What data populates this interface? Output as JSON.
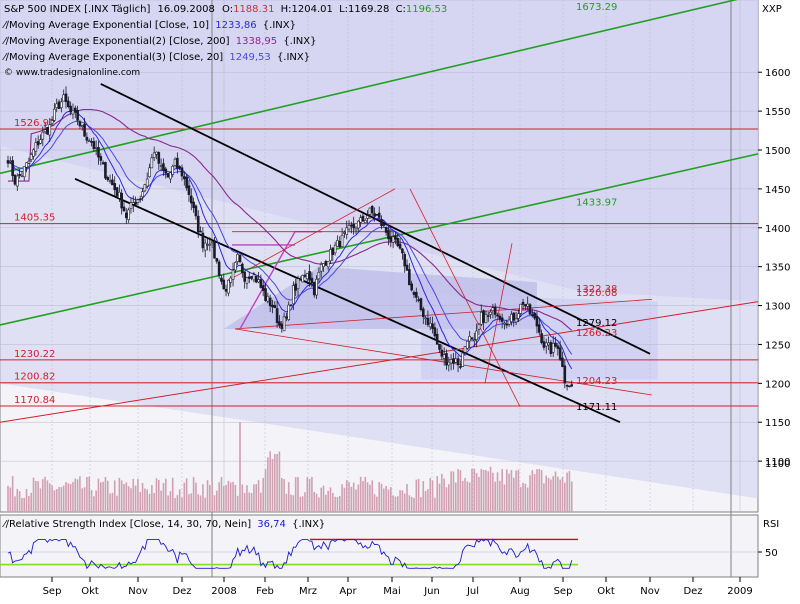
{
  "header": {
    "symbol_prefix": "S&P 500 INDEX [.INX  Täglich]",
    "date": "16.09.2008",
    "open_label": "O:",
    "open": "1188.31",
    "high_label": "H:",
    "high": "1204.01",
    "low_label": "L:",
    "low": "1169.28",
    "close_label": "C:",
    "close": "1196.53",
    "exchange_code": "XXP"
  },
  "indicators": [
    {
      "label": "Moving Average Exponential [Close, 10]",
      "value": "1233,86",
      "suffix": "{.INX}",
      "color": "#2a2ae0"
    },
    {
      "label": "Moving Average Exponential(2) [Close, 200]",
      "value": "1338,95",
      "suffix": "{.INX}",
      "color": "#8a2a8a"
    },
    {
      "label": "Moving Average Exponential(3) [Close, 20]",
      "value": "1249,53",
      "suffix": "{.INX}",
      "color": "#4a4ae0"
    }
  ],
  "watermark": "© www.tradesignalonline.com",
  "colors": {
    "panel_bg": "#f4f4f8",
    "band": "#d0d0f2",
    "grid": "#b8b8cc",
    "up": "#ffffff",
    "down": "#1a1a2a",
    "support": "#d0202a",
    "trend_green": "#20a020",
    "channel": "#000000",
    "fib": "#c080c0",
    "rsi_line": "#1a1ad0",
    "rsi_upper": "#e00000",
    "rsi_lower": "#80e020",
    "volume": "#d0a0b0"
  },
  "chart_data": [
    {
      "type": "candlestick",
      "title": "S&P 500 INDEX [.INX  Täglich]",
      "ylim": [
        1050,
        1680
      ],
      "y_ticks": [
        1100,
        1150,
        1200,
        1250,
        1300,
        1350,
        1400,
        1450,
        1500,
        1550,
        1600
      ],
      "x_ticks": [
        "Sep",
        "Okt",
        "Nov",
        "Dez",
        "2008",
        "Feb",
        "Mrz",
        "Apr",
        "Mai",
        "Jun",
        "Jul",
        "Aug",
        "Sep",
        "Okt",
        "Nov",
        "Dez",
        "2009"
      ],
      "close_path": [
        [
          0,
          1490
        ],
        [
          3,
          1460
        ],
        [
          6,
          1470
        ],
        [
          9,
          1485
        ],
        [
          12,
          1505
        ],
        [
          15,
          1520
        ],
        [
          18,
          1530
        ],
        [
          21,
          1555
        ],
        [
          24,
          1565
        ],
        [
          27,
          1548
        ],
        [
          30,
          1540
        ],
        [
          33,
          1520
        ],
        [
          36,
          1512
        ],
        [
          39,
          1490
        ],
        [
          42,
          1470
        ],
        [
          45,
          1455
        ],
        [
          48,
          1440
        ],
        [
          51,
          1415
        ],
        [
          54,
          1432
        ],
        [
          57,
          1440
        ],
        [
          60,
          1465
        ],
        [
          63,
          1500
        ],
        [
          66,
          1475
        ],
        [
          69,
          1465
        ],
        [
          72,
          1482
        ],
        [
          75,
          1470
        ],
        [
          78,
          1445
        ],
        [
          81,
          1410
        ],
        [
          84,
          1380
        ],
        [
          87,
          1385
        ],
        [
          90,
          1355
        ],
        [
          93,
          1320
        ],
        [
          96,
          1330
        ],
        [
          99,
          1360
        ],
        [
          102,
          1338
        ],
        [
          105,
          1342
        ],
        [
          108,
          1330
        ],
        [
          111,
          1310
        ],
        [
          114,
          1300
        ],
        [
          117,
          1275
        ],
        [
          120,
          1282
        ],
        [
          123,
          1320
        ],
        [
          126,
          1332
        ],
        [
          129,
          1345
        ],
        [
          132,
          1320
        ],
        [
          135,
          1350
        ],
        [
          138,
          1362
        ],
        [
          141,
          1375
        ],
        [
          144,
          1385
        ],
        [
          147,
          1397
        ],
        [
          150,
          1403
        ],
        [
          153,
          1410
        ],
        [
          156,
          1420
        ],
        [
          159,
          1415
        ],
        [
          162,
          1400
        ],
        [
          165,
          1385
        ],
        [
          168,
          1375
        ],
        [
          171,
          1355
        ],
        [
          174,
          1320
        ],
        [
          177,
          1300
        ],
        [
          180,
          1285
        ],
        [
          183,
          1270
        ],
        [
          186,
          1240
        ],
        [
          189,
          1230
        ],
        [
          192,
          1230
        ],
        [
          195,
          1225
        ],
        [
          198,
          1260
        ],
        [
          201,
          1250
        ],
        [
          204,
          1285
        ],
        [
          207,
          1285
        ],
        [
          210,
          1295
        ],
        [
          213,
          1285
        ],
        [
          216,
          1280
        ],
        [
          219,
          1288
        ],
        [
          222,
          1305
        ],
        [
          225,
          1290
        ],
        [
          228,
          1275
        ],
        [
          231,
          1250
        ],
        [
          234,
          1243
        ],
        [
          237,
          1250
        ],
        [
          240,
          1205
        ],
        [
          243,
          1196.53
        ]
      ],
      "levels": [
        {
          "label": "1526.92",
          "value": 1526.92
        },
        {
          "label": "1405.35",
          "value": 1405.35
        },
        {
          "label": "1230.22",
          "value": 1230.22
        },
        {
          "label": "1200.82",
          "value": 1200.82
        },
        {
          "label": "1170.84",
          "value": 1170.84
        }
      ],
      "annotations": [
        {
          "label": "1673.29",
          "value": 1673.29
        },
        {
          "label": "1433.97",
          "value": 1433.97
        },
        {
          "label": "1322.38",
          "value": 1322.38
        },
        {
          "label": "1320.08",
          "value": 1320.08
        },
        {
          "label": "1279.12",
          "value": 1279.12
        },
        {
          "label": "1266.23",
          "value": 1266.23
        },
        {
          "label": "1204.23",
          "value": 1204.23
        },
        {
          "label": "1171.11",
          "value": 1171.11
        }
      ],
      "volume_ticks": [
        1100
      ],
      "grid": true
    },
    {
      "type": "line",
      "title": "Relative Strength Index [Close, 14, 30, 70, Nein]",
      "value_label": "36,74",
      "suffix": "{.INX}",
      "axis_label": "RSI",
      "ylim": [
        15,
        85
      ],
      "y_ticks": [
        50
      ],
      "upper": 70,
      "lower": 30,
      "last_value": 36.74
    }
  ]
}
